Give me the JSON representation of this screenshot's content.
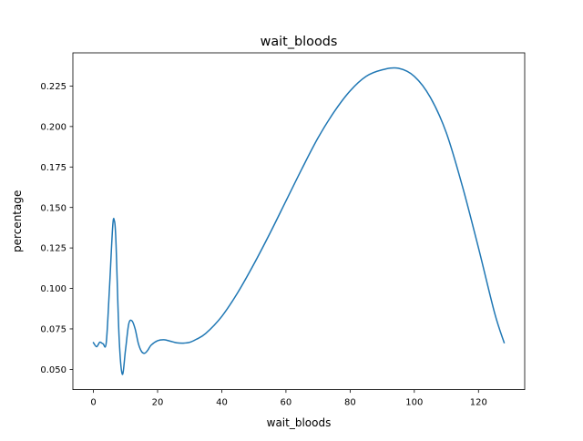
{
  "chart_data": {
    "type": "line",
    "title": "wait_bloods",
    "xlabel": "wait_bloods",
    "ylabel": "percentage",
    "xlim": [
      -6.4,
      134.4
    ],
    "ylim": [
      0.0375,
      0.2455
    ],
    "x_ticks": [
      0,
      20,
      40,
      60,
      80,
      100,
      120
    ],
    "x_tick_labels": [
      "0",
      "20",
      "40",
      "60",
      "80",
      "100",
      "120"
    ],
    "y_ticks": [
      0.05,
      0.075,
      0.1,
      0.125,
      0.15,
      0.175,
      0.2,
      0.225
    ],
    "y_tick_labels": [
      "0.050",
      "0.075",
      "0.100",
      "0.125",
      "0.150",
      "0.175",
      "0.200",
      "0.225"
    ],
    "grid": false,
    "line_color": "#1f77b4",
    "series": [
      {
        "x": [
          0,
          1,
          2,
          3,
          4,
          5,
          6,
          6.5,
          7,
          8,
          9,
          10,
          11,
          12,
          13,
          14,
          15,
          16,
          17,
          18,
          20,
          22,
          24,
          26,
          28,
          30,
          32,
          35,
          40,
          45,
          50,
          55,
          60,
          65,
          70,
          75,
          80,
          85,
          90,
          95,
          100,
          105,
          110,
          115,
          120,
          125,
          128
        ],
        "y": [
          0.0665,
          0.064,
          0.0668,
          0.0658,
          0.0665,
          0.1,
          0.138,
          0.142,
          0.13,
          0.07,
          0.047,
          0.062,
          0.078,
          0.08,
          0.075,
          0.066,
          0.061,
          0.06,
          0.062,
          0.065,
          0.0677,
          0.0683,
          0.0674,
          0.0664,
          0.0662,
          0.0667,
          0.0685,
          0.0722,
          0.0827,
          0.0975,
          0.115,
          0.134,
          0.154,
          0.174,
          0.193,
          0.209,
          0.222,
          0.231,
          0.235,
          0.236,
          0.231,
          0.218,
          0.196,
          0.163,
          0.125,
          0.085,
          0.0665
        ]
      }
    ]
  }
}
